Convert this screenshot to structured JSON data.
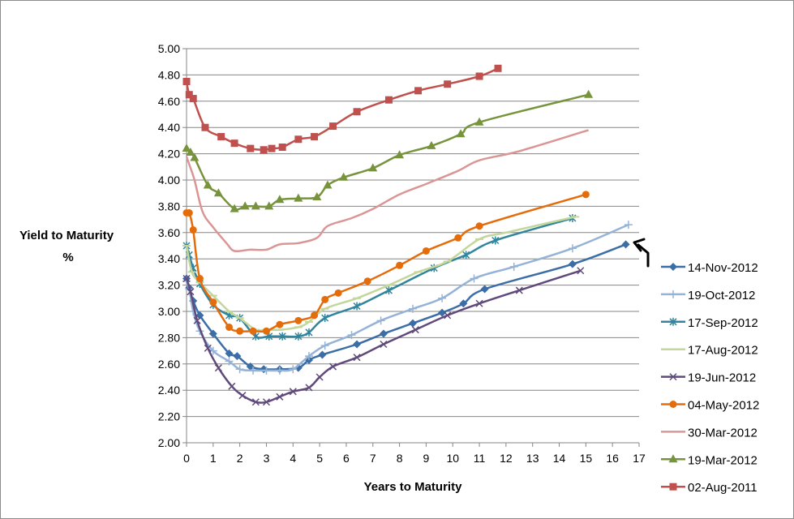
{
  "chart_data": {
    "type": "line",
    "xlabel": "Years to Maturity",
    "ylabel_line1": "Yield to Maturity",
    "ylabel_line2": "%",
    "xlim": [
      0,
      17
    ],
    "ylim": [
      2.0,
      5.0
    ],
    "x_ticks": [
      "0",
      "1",
      "2",
      "3",
      "4",
      "5",
      "6",
      "7",
      "8",
      "9",
      "10",
      "11",
      "12",
      "13",
      "14",
      "15",
      "16",
      "17"
    ],
    "y_ticks": [
      "2.00",
      "2.20",
      "2.40",
      "2.60",
      "2.80",
      "3.00",
      "3.20",
      "3.40",
      "3.60",
      "3.80",
      "4.00",
      "4.20",
      "4.40",
      "4.60",
      "4.80",
      "5.00"
    ],
    "grid": "horizontal",
    "legend_position": "right",
    "series": [
      {
        "name": "14-Nov-2012",
        "color": "#3b6da7",
        "marker": "diamond",
        "x": [
          0,
          0.1,
          0.25,
          0.5,
          1,
          1.6,
          1.9,
          2.4,
          2.9,
          3.5,
          4.2,
          4.6,
          5.1,
          6.4,
          7.4,
          8.5,
          9.6,
          10.4,
          11.2,
          14.5,
          16.5
        ],
        "y": [
          3.25,
          3.18,
          3.08,
          2.97,
          2.83,
          2.68,
          2.66,
          2.58,
          2.56,
          2.56,
          2.57,
          2.63,
          2.67,
          2.75,
          2.83,
          2.91,
          2.99,
          3.06,
          3.17,
          3.36,
          3.51
        ]
      },
      {
        "name": "19-Oct-2012",
        "color": "#95b3d7",
        "marker": "plus",
        "x": [
          0,
          0.1,
          0.25,
          0.5,
          1,
          1.6,
          2,
          2.5,
          3,
          3.5,
          4,
          4.6,
          5.2,
          6.2,
          7.3,
          8.5,
          9.6,
          10.8,
          12.3,
          14.5,
          16.6
        ],
        "y": [
          3.23,
          3.17,
          3.0,
          2.85,
          2.7,
          2.62,
          2.56,
          2.55,
          2.55,
          2.55,
          2.56,
          2.66,
          2.74,
          2.82,
          2.93,
          3.02,
          3.1,
          3.25,
          3.34,
          3.48,
          3.66
        ]
      },
      {
        "name": "17-Sep-2012",
        "color": "#31859c",
        "marker": "star",
        "x": [
          0,
          0.1,
          0.25,
          0.5,
          1,
          1.6,
          2,
          2.6,
          3.1,
          3.6,
          4.2,
          4.6,
          5.2,
          6.4,
          7.6,
          9.3,
          10.5,
          11.6,
          14.5
        ],
        "y": [
          3.5,
          3.43,
          3.33,
          3.21,
          3.05,
          2.97,
          2.95,
          2.81,
          2.81,
          2.81,
          2.81,
          2.84,
          2.95,
          3.04,
          3.16,
          3.33,
          3.43,
          3.54,
          3.71
        ]
      },
      {
        "name": "17-Aug-2012",
        "color": "#c3d69b",
        "marker": "dash",
        "x": [
          0,
          0.2,
          0.5,
          1,
          1.6,
          2,
          2.6,
          3,
          3.5,
          4.2,
          4.6,
          5.2,
          6.4,
          7.6,
          8.7,
          9.8,
          11,
          12,
          14.6
        ],
        "y": [
          3.5,
          3.3,
          3.22,
          3.12,
          3.0,
          2.95,
          2.86,
          2.86,
          2.86,
          2.88,
          2.92,
          3.02,
          3.1,
          3.2,
          3.3,
          3.38,
          3.55,
          3.6,
          3.72
        ]
      },
      {
        "name": "19-Jun-2012",
        "color": "#604a7b",
        "marker": "cross",
        "x": [
          0,
          0.15,
          0.4,
          0.8,
          1.2,
          1.7,
          2.1,
          2.6,
          3,
          3.5,
          4,
          4.6,
          5,
          5.5,
          6.4,
          7.4,
          8.6,
          9.8,
          11,
          12.5,
          14.8
        ],
        "y": [
          3.25,
          3.15,
          2.93,
          2.72,
          2.57,
          2.43,
          2.36,
          2.31,
          2.31,
          2.35,
          2.39,
          2.42,
          2.5,
          2.58,
          2.65,
          2.75,
          2.86,
          2.97,
          3.06,
          3.16,
          3.31
        ]
      },
      {
        "name": "04-May-2012",
        "color": "#e46c0a",
        "marker": "circle",
        "x": [
          0,
          0.1,
          0.25,
          0.5,
          1,
          1.6,
          2,
          2.5,
          3,
          3.5,
          4.2,
          4.8,
          5.2,
          5.7,
          6.8,
          8,
          9,
          10.2,
          11,
          15
        ],
        "y": [
          3.75,
          3.75,
          3.62,
          3.25,
          3.07,
          2.88,
          2.85,
          2.85,
          2.85,
          2.9,
          2.93,
          2.97,
          3.09,
          3.14,
          3.23,
          3.35,
          3.46,
          3.56,
          3.65,
          3.89
        ]
      },
      {
        "name": "30-Mar-2012",
        "color": "#d99694",
        "marker": "none",
        "x": [
          0,
          0.1,
          0.3,
          0.6,
          1,
          1.5,
          1.8,
          2.4,
          3,
          3.5,
          4.2,
          4.9,
          5.3,
          6.2,
          7,
          8,
          9,
          10.2,
          11,
          12.5,
          15.1
        ],
        "y": [
          4.18,
          4.12,
          4.0,
          3.76,
          3.64,
          3.52,
          3.46,
          3.47,
          3.47,
          3.51,
          3.52,
          3.56,
          3.65,
          3.71,
          3.78,
          3.89,
          3.97,
          4.07,
          4.15,
          4.22,
          4.38
        ]
      },
      {
        "name": "19-Mar-2012",
        "color": "#77933c",
        "marker": "triangle",
        "x": [
          0,
          0.15,
          0.3,
          0.8,
          1.2,
          1.8,
          2.2,
          2.6,
          3.1,
          3.5,
          4.2,
          4.9,
          5.3,
          5.9,
          7,
          8,
          9.2,
          10.3,
          11,
          15.1
        ],
        "y": [
          4.24,
          4.21,
          4.17,
          3.96,
          3.9,
          3.78,
          3.8,
          3.8,
          3.8,
          3.85,
          3.86,
          3.87,
          3.96,
          4.02,
          4.09,
          4.19,
          4.26,
          4.35,
          4.44,
          4.65
        ]
      },
      {
        "name": "02-Aug-2011",
        "color": "#c0504d",
        "marker": "square",
        "x": [
          0,
          0.1,
          0.25,
          0.7,
          1.3,
          1.8,
          2.4,
          2.9,
          3.2,
          3.6,
          4.2,
          4.8,
          5.5,
          6.4,
          7.6,
          8.7,
          9.8,
          11,
          11.7
        ],
        "y": [
          4.75,
          4.65,
          4.62,
          4.4,
          4.33,
          4.28,
          4.24,
          4.23,
          4.24,
          4.25,
          4.31,
          4.33,
          4.41,
          4.52,
          4.61,
          4.68,
          4.73,
          4.79,
          4.85
        ]
      }
    ],
    "annotation": {
      "type": "arrow",
      "points_to_series": "14-Nov-2012"
    }
  }
}
